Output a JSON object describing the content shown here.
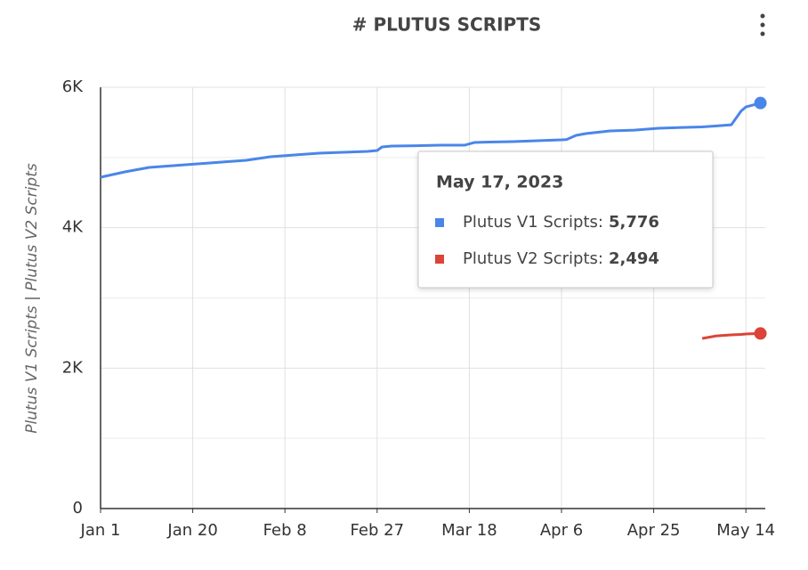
{
  "chart_data": {
    "type": "line",
    "title": "# PLUTUS SCRIPTS",
    "y_label": "Plutus V1 Scripts | Plutus V2 Scripts",
    "x": [
      0,
      5,
      10,
      15,
      20,
      25,
      30,
      35,
      40,
      45,
      50,
      55,
      57,
      58,
      60,
      65,
      70,
      75,
      77,
      80,
      85,
      90,
      95,
      96,
      98,
      100,
      105,
      110,
      115,
      120,
      124,
      127,
      130,
      132,
      133,
      136
    ],
    "series": [
      {
        "name": "Plutus V1 Scripts",
        "color": "#4a86e8",
        "values": [
          4719,
          4795,
          4858,
          4884,
          4909,
          4935,
          4960,
          5010,
          5036,
          5061,
          5074,
          5087,
          5099,
          5150,
          5163,
          5168,
          5175,
          5175,
          5213,
          5220,
          5226,
          5239,
          5251,
          5255,
          5315,
          5340,
          5378,
          5390,
          5416,
          5428,
          5435,
          5450,
          5466,
          5660,
          5720,
          5776
        ]
      },
      {
        "name": "Plutus V2 Scripts",
        "color": "#db4437",
        "values": [
          null,
          null,
          null,
          null,
          null,
          null,
          null,
          null,
          null,
          null,
          null,
          null,
          null,
          null,
          null,
          null,
          null,
          null,
          null,
          null,
          null,
          null,
          null,
          null,
          null,
          null,
          null,
          null,
          null,
          null,
          2423,
          2460,
          2474,
          2480,
          2486,
          2494
        ]
      }
    ],
    "xlim": [
      0,
      137
    ],
    "xticks": [
      {
        "value": 0,
        "label": "Jan 1"
      },
      {
        "value": 19,
        "label": "Jan 20"
      },
      {
        "value": 38,
        "label": "Feb 8"
      },
      {
        "value": 57,
        "label": "Feb 27"
      },
      {
        "value": 76,
        "label": "Mar 18"
      },
      {
        "value": 95,
        "label": "Apr 6"
      },
      {
        "value": 114,
        "label": "Apr 25"
      },
      {
        "value": 133,
        "label": "May 14"
      }
    ],
    "ylim": [
      0,
      6000
    ],
    "yticks": [
      0,
      {
        "value": 2000,
        "label": "2K"
      },
      {
        "value": 4000,
        "label": "4K"
      },
      {
        "value": 6000,
        "label": "6K"
      }
    ],
    "minor_yticks": [
      1000,
      3000,
      5000
    ],
    "grid": true,
    "tooltip": {
      "title": "May 17, 2023",
      "items": [
        {
          "label": "Plutus V1 Scripts:",
          "value": 5776,
          "value_label": "5,776"
        },
        {
          "label": "Plutus V2 Scripts:",
          "value": 2494,
          "value_label": "2,494"
        }
      ]
    }
  }
}
